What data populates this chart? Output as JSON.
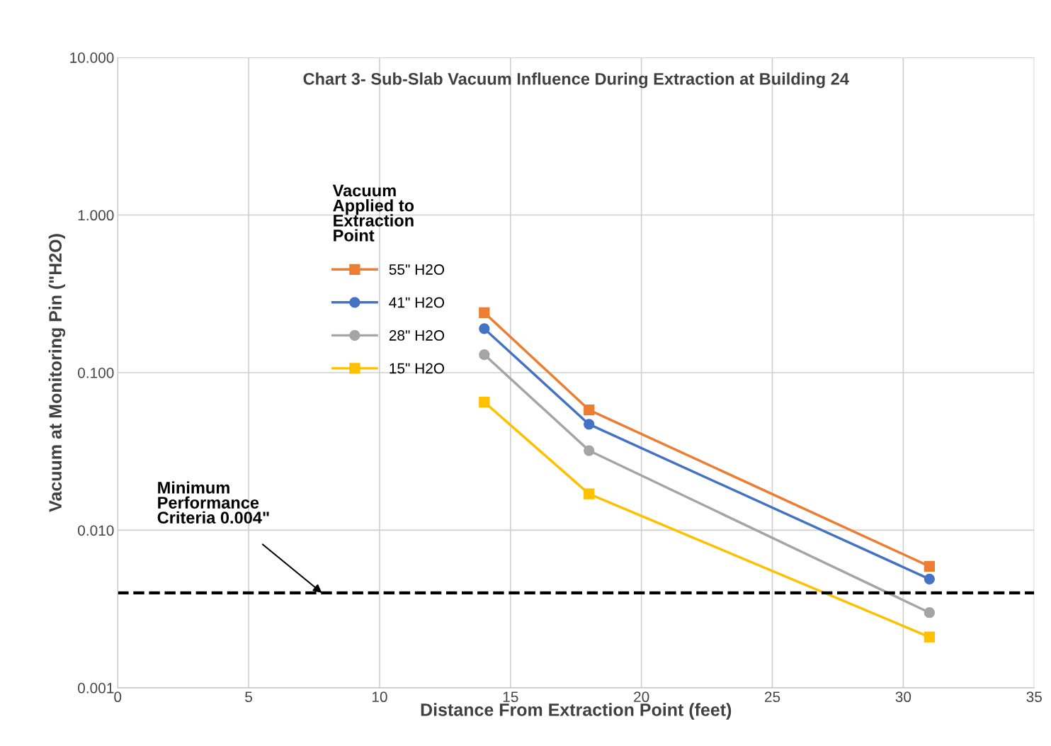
{
  "chart_data": {
    "type": "line",
    "title": "Chart 3- Sub-Slab Vacuum Influence During Extraction at Building 24",
    "xlabel": "Distance From Extraction Point (feet)",
    "ylabel": "Vacuum at Monitoring Pin (\"H2O)",
    "legend_title": "Vacuum\nApplied to\nExtraction\nPoint",
    "legend": "left",
    "log": "y",
    "grid": true,
    "line_style": "solid",
    "x": [
      14,
      18,
      31
    ],
    "series": [
      {
        "name": "55\" H2O",
        "color": "#ed7d31",
        "marker": "square",
        "values": [
          0.24,
          0.058,
          0.0059
        ]
      },
      {
        "name": "41\" H2O",
        "color": "#4472c4",
        "marker": "circle",
        "values": [
          0.19,
          0.047,
          0.0049
        ]
      },
      {
        "name": "28\" H2O",
        "color": "#a5a5a5",
        "marker": "circle",
        "values": [
          0.13,
          0.032,
          0.003
        ]
      },
      {
        "name": "15\" H2O",
        "color": "#ffc000",
        "marker": "square",
        "values": [
          0.065,
          0.017,
          0.0021
        ]
      }
    ],
    "xlim": [
      0,
      35
    ],
    "xticks": [
      0,
      5,
      10,
      15,
      20,
      25,
      30,
      35
    ],
    "ylim": [
      0.001,
      10
    ],
    "yticks": [
      {
        "value": 0.001,
        "label": "0.001"
      },
      {
        "value": 0.01,
        "label": "0.010"
      },
      {
        "value": 0.1,
        "label": "0.100"
      },
      {
        "value": 1,
        "label": "1.000"
      },
      {
        "value": 10,
        "label": "10.000"
      }
    ],
    "ref_lines": [
      {
        "axis": "y",
        "value": 0.004,
        "color": "#000000",
        "line_style": "dashed"
      }
    ],
    "annotations": [
      {
        "text": "Minimum\nPerformance\nCriteria 0.004\"",
        "x": 7.8,
        "y": 0.004
      }
    ]
  }
}
